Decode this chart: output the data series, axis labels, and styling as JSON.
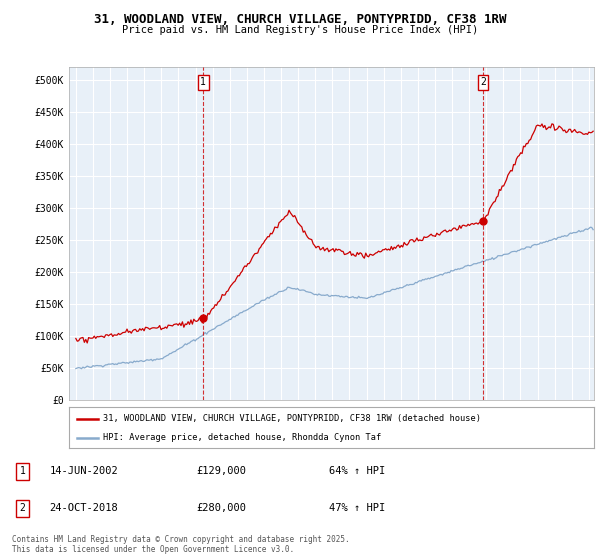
{
  "title_line1": "31, WOODLAND VIEW, CHURCH VILLAGE, PONTYPRIDD, CF38 1RW",
  "title_line2": "Price paid vs. HM Land Registry's House Price Index (HPI)",
  "legend_line1": "31, WOODLAND VIEW, CHURCH VILLAGE, PONTYPRIDD, CF38 1RW (detached house)",
  "legend_line2": "HPI: Average price, detached house, Rhondda Cynon Taf",
  "annotation1": {
    "num": "1",
    "date": "14-JUN-2002",
    "price": "£129,000",
    "hpi": "64% ↑ HPI"
  },
  "annotation2": {
    "num": "2",
    "date": "24-OCT-2018",
    "price": "£280,000",
    "hpi": "47% ↑ HPI"
  },
  "footnote": "Contains HM Land Registry data © Crown copyright and database right 2025.\nThis data is licensed under the Open Government Licence v3.0.",
  "property_color": "#cc0000",
  "hpi_color": "#88aacc",
  "chart_bg": "#e8f0f8",
  "ylim": [
    0,
    520000
  ],
  "yticks": [
    0,
    50000,
    100000,
    150000,
    200000,
    250000,
    300000,
    350000,
    400000,
    450000,
    500000
  ],
  "ytick_labels": [
    "£0",
    "£50K",
    "£100K",
    "£150K",
    "£200K",
    "£250K",
    "£300K",
    "£350K",
    "£400K",
    "£450K",
    "£500K"
  ],
  "marker1_x": 2002.45,
  "marker1_y": 129000,
  "marker2_x": 2018.81,
  "marker2_y": 280000,
  "vline1_x": 2002.45,
  "vline2_x": 2018.81,
  "xlim": [
    1994.6,
    2025.3
  ],
  "xtick_years": [
    1995,
    1996,
    1997,
    1998,
    1999,
    2000,
    2001,
    2002,
    2003,
    2004,
    2005,
    2006,
    2007,
    2008,
    2009,
    2010,
    2011,
    2012,
    2013,
    2014,
    2015,
    2016,
    2017,
    2018,
    2019,
    2020,
    2021,
    2022,
    2023,
    2024,
    2025
  ]
}
